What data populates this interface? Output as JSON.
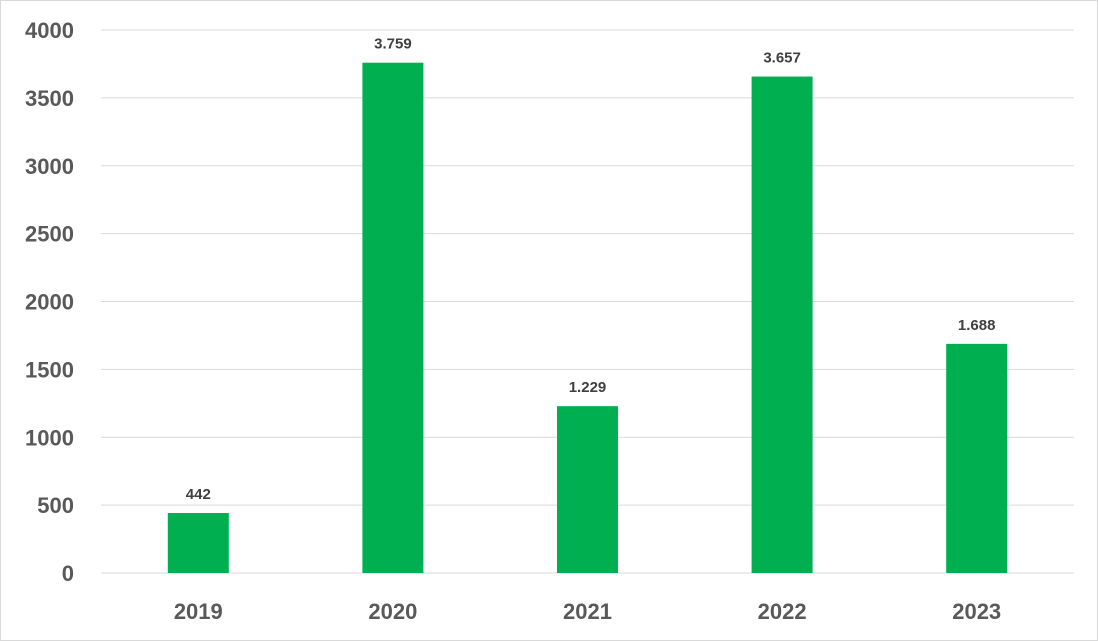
{
  "chart_data": {
    "type": "bar",
    "categories": [
      "2019",
      "2020",
      "2021",
      "2022",
      "2023"
    ],
    "values": [
      442,
      3759,
      1229,
      3657,
      1688
    ],
    "data_labels": [
      "442",
      "3.759",
      "1.229",
      "3.657",
      "1.688"
    ],
    "title": "",
    "xlabel": "",
    "ylabel": "",
    "ylim": [
      0,
      4000
    ],
    "yticks": [
      0,
      500,
      1000,
      1500,
      2000,
      2500,
      3000,
      3500,
      4000
    ],
    "ytick_labels": [
      "0",
      "500",
      "1000",
      "1500",
      "2000",
      "2500",
      "3000",
      "3500",
      "4000"
    ],
    "grid": true,
    "legend": "none",
    "colors": {
      "bar": "#00b050",
      "grid": "#d9d9d9",
      "tick_text": "#595959",
      "label_text": "#404040"
    }
  }
}
